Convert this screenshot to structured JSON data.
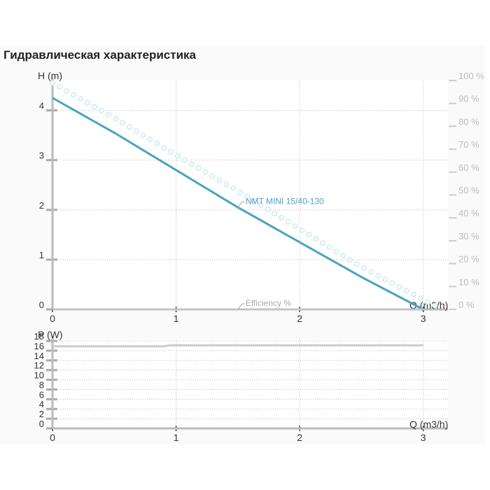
{
  "title": "Гидравлическая характеристика",
  "chart_data": [
    {
      "type": "line",
      "y_label": "H (m)",
      "x_label": "Q (m3/h)",
      "x": [
        0,
        0.5,
        1,
        1.5,
        2,
        2.5,
        3,
        3.15
      ],
      "xlim": [
        0,
        3.2
      ],
      "xticks": [
        0,
        1,
        2,
        3
      ],
      "ylim": [
        0,
        4.6
      ],
      "yticks": [
        0,
        1,
        2,
        3,
        4
      ],
      "y2lim": [
        0,
        100
      ],
      "y2ticks": [
        {
          "value": 0,
          "label": "0 %"
        },
        {
          "value": 10,
          "label": "10 %"
        },
        {
          "value": 20,
          "label": "20 %"
        },
        {
          "value": 30,
          "label": "30 %"
        },
        {
          "value": 40,
          "label": "40 %"
        },
        {
          "value": 50,
          "label": "50 %"
        },
        {
          "value": 60,
          "label": "60 %"
        },
        {
          "value": 70,
          "label": "70 %"
        },
        {
          "value": 80,
          "label": "80 %"
        },
        {
          "value": 90,
          "label": "90 %"
        },
        {
          "value": 100,
          "label": "100 %"
        }
      ],
      "grid": true,
      "series": [
        {
          "color": "#d3ecf4",
          "style": "dotted",
          "values": [
            4.55,
            3.85,
            3.1,
            2.38,
            1.62,
            0.85,
            0.2,
            0
          ]
        },
        {
          "name": "NMT MINI 15/40-130",
          "color": "#4aa3c0",
          "values": [
            4.25,
            3.55,
            2.8,
            2.05,
            1.35,
            0.65,
            0,
            null
          ]
        },
        {
          "name": "Efficiency %",
          "color": "#c4c4c4",
          "axis": "y2",
          "values": [
            0,
            0,
            0,
            0,
            0,
            0,
            0,
            null
          ]
        }
      ]
    },
    {
      "type": "line",
      "y_label": "P (W)",
      "x_label": "Q (m3/h)",
      "x": [
        0,
        0.9,
        0.95,
        3
      ],
      "xlim": [
        0,
        3.2
      ],
      "xticks": [
        0,
        1,
        2,
        3
      ],
      "ylim": [
        0,
        18.3
      ],
      "yticks": [
        0,
        2,
        4,
        6,
        8,
        10,
        12,
        14,
        16,
        18
      ],
      "grid": true,
      "series": [
        {
          "color": "#cccccc",
          "values": [
            16.9,
            16.9,
            17.1,
            17.1
          ]
        }
      ]
    }
  ]
}
